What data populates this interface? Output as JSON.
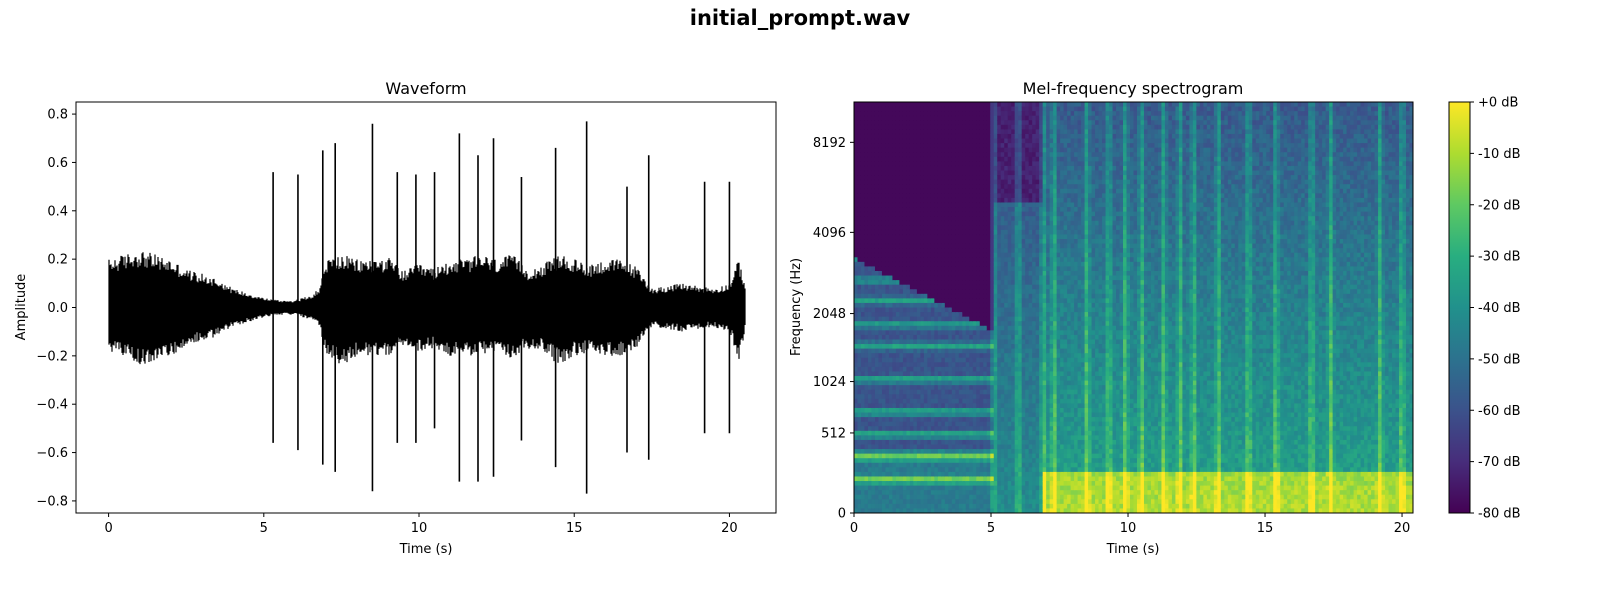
{
  "figure": {
    "suptitle": "initial_prompt.wav"
  },
  "chart_data": [
    {
      "type": "line",
      "title": "Waveform",
      "xlabel": "Time (s)",
      "ylabel": "Amplitude",
      "xlim": [
        -1.05,
        21.5
      ],
      "ylim": [
        -0.85,
        0.85
      ],
      "xticks": [
        0,
        5,
        10,
        15,
        20
      ],
      "xtick_labels": [
        "0",
        "5",
        "10",
        "15",
        "20"
      ],
      "yticks": [
        -0.8,
        -0.6,
        -0.4,
        -0.2,
        0.0,
        0.2,
        0.4,
        0.6,
        0.8
      ],
      "ytick_labels": [
        "−0.8",
        "−0.6",
        "−0.4",
        "−0.2",
        "0.0",
        "0.2",
        "0.4",
        "0.6",
        "0.8"
      ],
      "line_color": "#000000",
      "envelope": {
        "t": [
          0,
          0.5,
          1,
          1.5,
          2,
          2.5,
          3,
          3.5,
          4,
          4.5,
          5,
          5.5,
          6,
          6.5,
          6.8,
          7,
          7.5,
          8,
          8.5,
          9,
          9.5,
          10,
          10.5,
          11,
          11.5,
          12,
          12.5,
          13,
          13.5,
          14,
          14.5,
          15,
          15.5,
          16,
          16.5,
          17,
          17.5,
          18,
          18.5,
          19,
          19.5,
          20,
          20.3,
          20.5
        ],
        "max": [
          0.2,
          0.22,
          0.24,
          0.22,
          0.2,
          0.16,
          0.14,
          0.12,
          0.08,
          0.06,
          0.04,
          0.03,
          0.03,
          0.05,
          0.08,
          0.2,
          0.22,
          0.2,
          0.2,
          0.21,
          0.15,
          0.18,
          0.16,
          0.2,
          0.2,
          0.22,
          0.2,
          0.22,
          0.16,
          0.18,
          0.22,
          0.2,
          0.18,
          0.2,
          0.2,
          0.17,
          0.08,
          0.09,
          0.1,
          0.09,
          0.08,
          0.1,
          0.2,
          0.1
        ],
        "min": [
          -0.18,
          -0.2,
          -0.24,
          -0.22,
          -0.2,
          -0.16,
          -0.14,
          -0.12,
          -0.08,
          -0.06,
          -0.04,
          -0.03,
          -0.03,
          -0.05,
          -0.08,
          -0.2,
          -0.25,
          -0.2,
          -0.2,
          -0.2,
          -0.16,
          -0.18,
          -0.17,
          -0.2,
          -0.2,
          -0.2,
          -0.18,
          -0.22,
          -0.17,
          -0.18,
          -0.24,
          -0.2,
          -0.19,
          -0.2,
          -0.2,
          -0.17,
          -0.08,
          -0.09,
          -0.1,
          -0.09,
          -0.08,
          -0.1,
          -0.22,
          -0.1
        ]
      },
      "spikes": [
        {
          "t": 5.3,
          "max": 0.56,
          "min": -0.56
        },
        {
          "t": 6.1,
          "max": 0.55,
          "min": -0.59
        },
        {
          "t": 6.9,
          "max": 0.65,
          "min": -0.65
        },
        {
          "t": 7.3,
          "max": 0.68,
          "min": -0.68
        },
        {
          "t": 8.5,
          "max": 0.76,
          "min": -0.76
        },
        {
          "t": 9.3,
          "max": 0.56,
          "min": -0.56
        },
        {
          "t": 9.9,
          "max": 0.55,
          "min": -0.56
        },
        {
          "t": 10.5,
          "max": 0.56,
          "min": -0.5
        },
        {
          "t": 11.3,
          "max": 0.72,
          "min": -0.72
        },
        {
          "t": 11.9,
          "max": 0.63,
          "min": -0.72
        },
        {
          "t": 12.4,
          "max": 0.7,
          "min": -0.7
        },
        {
          "t": 13.3,
          "max": 0.54,
          "min": -0.55
        },
        {
          "t": 14.4,
          "max": 0.66,
          "min": -0.66
        },
        {
          "t": 15.4,
          "max": 0.77,
          "min": -0.77
        },
        {
          "t": 16.7,
          "max": 0.5,
          "min": -0.6
        },
        {
          "t": 17.4,
          "max": 0.63,
          "min": -0.63
        },
        {
          "t": 19.2,
          "max": 0.52,
          "min": -0.52
        },
        {
          "t": 20.0,
          "max": 0.52,
          "min": -0.52
        }
      ]
    },
    {
      "type": "heatmap",
      "title": "Mel-frequency spectrogram",
      "xlabel": "Time (s)",
      "ylabel": "Frequency (Hz)",
      "xlim": [
        0,
        20.4
      ],
      "scale": "mel",
      "xticks": [
        0,
        5,
        10,
        15,
        20
      ],
      "xtick_labels": [
        "0",
        "5",
        "10",
        "15",
        "20"
      ],
      "yticks": [
        0,
        512,
        1024,
        2048,
        4096,
        8192
      ],
      "ytick_labels": [
        "0",
        "512",
        "1024",
        "2048",
        "4096",
        "8192"
      ],
      "colormap": "viridis",
      "colorbar": {
        "range": [
          -80,
          0
        ],
        "ticks": [
          0,
          -10,
          -20,
          -30,
          -40,
          -50,
          -60,
          -70,
          -80
        ],
        "tick_labels": [
          "+0 dB",
          "-10 dB",
          "-20 dB",
          "-30 dB",
          "-40 dB",
          "-50 dB",
          "-60 dB",
          "-70 dB",
          "-80 dB"
        ]
      },
      "onsets_s": [
        5.1,
        6.0,
        6.9,
        7.3,
        8.5,
        9.3,
        9.9,
        10.5,
        11.3,
        11.9,
        12.4,
        13.3,
        14.4,
        15.4,
        16.7,
        17.4,
        19.2,
        20.0
      ],
      "harmonic_bands_hz": [
        180,
        330,
        500,
        700,
        1050,
        1500,
        1850,
        2300,
        2750,
        3300,
        3900
      ]
    }
  ]
}
